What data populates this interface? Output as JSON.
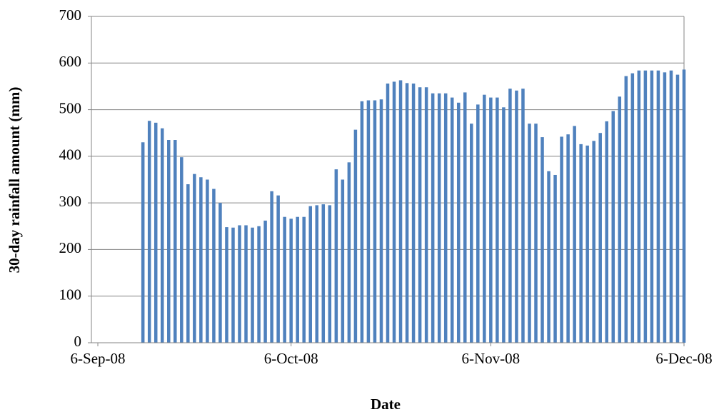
{
  "chart_data": {
    "type": "bar",
    "x_label": "Date",
    "y_label": "30-day rainfall amount (mm)",
    "x": [
      "2008-09-13",
      "2008-09-14",
      "2008-09-15",
      "2008-09-16",
      "2008-09-17",
      "2008-09-18",
      "2008-09-19",
      "2008-09-20",
      "2008-09-21",
      "2008-09-22",
      "2008-09-23",
      "2008-09-24",
      "2008-09-25",
      "2008-09-26",
      "2008-09-27",
      "2008-09-28",
      "2008-09-29",
      "2008-09-30",
      "2008-10-01",
      "2008-10-02",
      "2008-10-03",
      "2008-10-04",
      "2008-10-05",
      "2008-10-06",
      "2008-10-07",
      "2008-10-08",
      "2008-10-09",
      "2008-10-10",
      "2008-10-11",
      "2008-10-12",
      "2008-10-13",
      "2008-10-14",
      "2008-10-15",
      "2008-10-16",
      "2008-10-17",
      "2008-10-18",
      "2008-10-19",
      "2008-10-20",
      "2008-10-21",
      "2008-10-22",
      "2008-10-23",
      "2008-10-24",
      "2008-10-25",
      "2008-10-26",
      "2008-10-27",
      "2008-10-28",
      "2008-10-29",
      "2008-10-30",
      "2008-10-31",
      "2008-11-01",
      "2008-11-02",
      "2008-11-03",
      "2008-11-04",
      "2008-11-05",
      "2008-11-06",
      "2008-11-07",
      "2008-11-08",
      "2008-11-09",
      "2008-11-10",
      "2008-11-11",
      "2008-11-12",
      "2008-11-13",
      "2008-11-14",
      "2008-11-15",
      "2008-11-16",
      "2008-11-17",
      "2008-11-18",
      "2008-11-19",
      "2008-11-20",
      "2008-11-21",
      "2008-11-22",
      "2008-11-23",
      "2008-11-24",
      "2008-11-25",
      "2008-11-26",
      "2008-11-27",
      "2008-11-28",
      "2008-11-29",
      "2008-11-30",
      "2008-12-01",
      "2008-12-02",
      "2008-12-03",
      "2008-12-04",
      "2008-12-05",
      "2008-12-06"
    ],
    "values": [
      430,
      476,
      472,
      460,
      435,
      435,
      398,
      340,
      362,
      355,
      350,
      330,
      300,
      248,
      247,
      252,
      252,
      247,
      250,
      262,
      325,
      316,
      270,
      266,
      270,
      270,
      293,
      295,
      297,
      295,
      372,
      350,
      387,
      457,
      518,
      520,
      520,
      522,
      556,
      560,
      563,
      557,
      556,
      548,
      548,
      535,
      535,
      535,
      526,
      515,
      537,
      470,
      511,
      532,
      526,
      526,
      505,
      545,
      541,
      545,
      470,
      470,
      441,
      368,
      360,
      442,
      447,
      465,
      426,
      423,
      433,
      450,
      475,
      497,
      528,
      572,
      578,
      584,
      584,
      584,
      584,
      580,
      584,
      575,
      586
    ],
    "color": "#4f81bd",
    "xlim": [
      "2008-09-05",
      "2008-12-06"
    ],
    "xticks": [
      {
        "value": "2008-09-06",
        "label": "6-Sep-08"
      },
      {
        "value": "2008-10-06",
        "label": "6-Oct-08"
      },
      {
        "value": "2008-11-06",
        "label": "6-Nov-08"
      },
      {
        "value": "2008-12-06",
        "label": "6-Dec-08"
      }
    ],
    "ylim": [
      0,
      700
    ],
    "yticks": [
      0,
      100,
      200,
      300,
      400,
      500,
      600,
      700
    ],
    "grid": true
  }
}
